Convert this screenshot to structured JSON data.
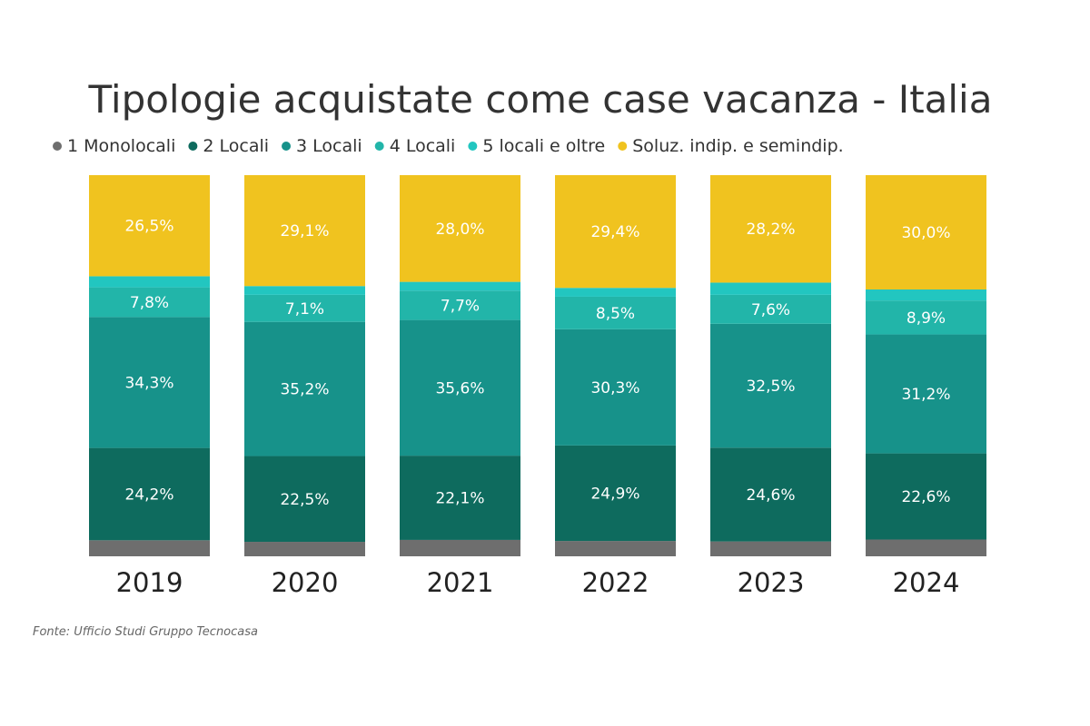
{
  "chart_data": {
    "type": "bar",
    "stacked": true,
    "title": "Tipologie acquistate come case vacanza - Italia",
    "source": "Fonte: Ufficio Studi Gruppo Tecnocasa",
    "categories": [
      "2019",
      "2020",
      "2021",
      "2022",
      "2023",
      "2024"
    ],
    "legend_position": "top",
    "grid": false,
    "series": [
      {
        "name": "1 Monolocali",
        "color": "#6e6e6e",
        "values": [
          4.2,
          3.8,
          4.3,
          4.0,
          3.9,
          4.4
        ],
        "labels": [
          "",
          "",
          "",
          "",
          "",
          ""
        ]
      },
      {
        "name": "2 Locali",
        "color": "#0e6b5e",
        "values": [
          24.2,
          22.5,
          22.1,
          24.9,
          24.6,
          22.6
        ],
        "labels": [
          "24,2%",
          "22,5%",
          "22,1%",
          "24,9%",
          "24,6%",
          "22,6%"
        ]
      },
      {
        "name": "3 Locali",
        "color": "#17928a",
        "values": [
          34.3,
          35.2,
          35.6,
          30.3,
          32.5,
          31.2
        ],
        "labels": [
          "34,3%",
          "35,2%",
          "35,6%",
          "30,3%",
          "32,5%",
          "31,2%"
        ]
      },
      {
        "name": "4 Locali",
        "color": "#22b5a9",
        "values": [
          7.8,
          7.1,
          7.7,
          8.5,
          7.6,
          8.9
        ],
        "labels": [
          "7,8%",
          "7,1%",
          "7,7%",
          "8,5%",
          "7,6%",
          "8,9%"
        ]
      },
      {
        "name": "5 locali e oltre",
        "color": "#22c6c0",
        "values": [
          2.9,
          2.3,
          2.3,
          2.3,
          3.2,
          2.9
        ],
        "labels": [
          "",
          "",
          "",
          "",
          "",
          ""
        ]
      },
      {
        "name": "Soluz. indip. e semindip.",
        "color": "#f0c31f",
        "values": [
          26.5,
          29.1,
          28.0,
          29.4,
          28.2,
          30.0
        ],
        "labels": [
          "26,5%",
          "29,1%",
          "28,0%",
          "29,4%",
          "28,2%",
          "30,0%"
        ]
      }
    ]
  }
}
